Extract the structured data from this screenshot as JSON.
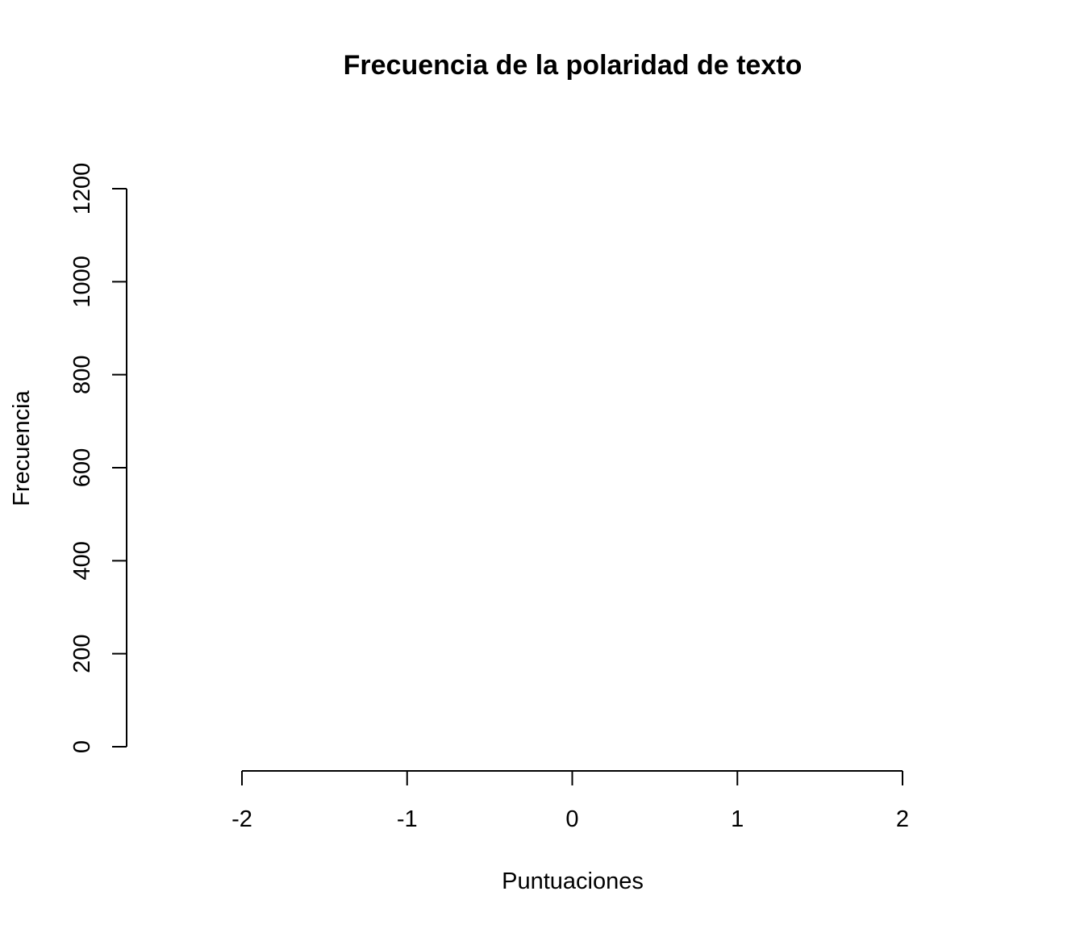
{
  "chart_data": {
    "type": "bar",
    "title": "Frecuencia de la polaridad de texto",
    "xlabel": "Puntuaciones",
    "ylabel": "Frecuencia",
    "xlim": [
      -2,
      2
    ],
    "ylim": [
      0,
      1200
    ],
    "x_ticks": [
      -2,
      -1,
      0,
      1,
      2
    ],
    "y_ticks": [
      0,
      200,
      400,
      600,
      800,
      1000,
      1200
    ],
    "x_tick_labels": [
      "-2",
      "-1",
      "0",
      "1",
      "2"
    ],
    "y_tick_labels": [
      "0",
      "200",
      "400",
      "600",
      "800",
      "1000",
      "1200"
    ],
    "categories": [],
    "values": [],
    "grid": false,
    "legend": "none",
    "colors": {
      "axis": "#000000",
      "text": "#000000",
      "background": "#ffffff"
    }
  }
}
